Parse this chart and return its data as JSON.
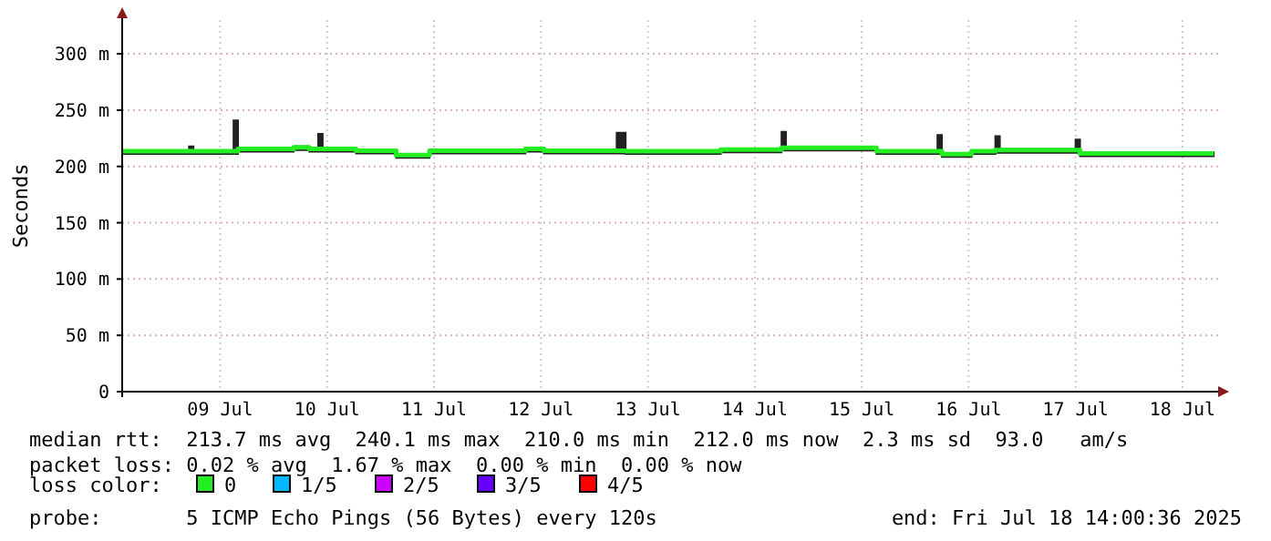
{
  "chart_data": {
    "type": "step",
    "ylabel": "Seconds",
    "legend_title": "loss color:",
    "legend": "bottom",
    "grid": true,
    "line_style": "solid",
    "marker": "none",
    "xlim": [
      "2025-07-08T14:00",
      "2025-07-18T20:00"
    ],
    "xticks": [
      {
        "value": "2025-07-09T12:00",
        "label": "09 Jul"
      },
      {
        "value": "2025-07-10T12:00",
        "label": "10 Jul"
      },
      {
        "value": "2025-07-11T12:00",
        "label": "11 Jul"
      },
      {
        "value": "2025-07-12T12:00",
        "label": "12 Jul"
      },
      {
        "value": "2025-07-13T12:00",
        "label": "13 Jul"
      },
      {
        "value": "2025-07-14T12:00",
        "label": "14 Jul"
      },
      {
        "value": "2025-07-15T12:00",
        "label": "15 Jul"
      },
      {
        "value": "2025-07-16T12:00",
        "label": "16 Jul"
      },
      {
        "value": "2025-07-17T12:00",
        "label": "17 Jul"
      },
      {
        "value": "2025-07-18T12:00",
        "label": "18 Jul"
      }
    ],
    "ylim": [
      0,
      330
    ],
    "yticks": [
      0,
      {
        "value": 50,
        "label": "50 m"
      },
      {
        "value": 100,
        "label": "100 m"
      },
      {
        "value": 150,
        "label": "150 m"
      },
      {
        "value": 200,
        "label": "200 m"
      },
      {
        "value": 250,
        "label": "250 m"
      },
      {
        "value": 300,
        "label": "300 m"
      }
    ],
    "x": [
      "2025-07-08T14:00",
      "2025-07-09T05:00",
      "2025-07-09T06:00",
      "2025-07-09T15:00",
      "2025-07-09T16:00",
      "2025-07-10T04:30",
      "2025-07-10T08:00",
      "2025-07-10T10:00",
      "2025-07-10T11:00",
      "2025-07-10T18:30",
      "2025-07-11T03:30",
      "2025-07-11T11:00",
      "2025-07-12T08:30",
      "2025-07-12T12:40",
      "2025-07-13T05:00",
      "2025-07-13T07:00",
      "2025-07-14T04:20",
      "2025-07-14T18:00",
      "2025-07-14T19:00",
      "2025-07-15T15:20",
      "2025-07-16T05:00",
      "2025-07-16T06:00",
      "2025-07-16T12:40",
      "2025-07-16T18:00",
      "2025-07-16T19:00",
      "2025-07-17T12:00",
      "2025-07-17T13:00",
      "2025-07-18T19:00"
    ],
    "series": [
      {
        "name": "0",
        "color": "#22ee22",
        "values": [
          213.5,
          213.5,
          213.5,
          213.5,
          215.5,
          217,
          215.5,
          215.5,
          215.5,
          214,
          210,
          214,
          215.5,
          214,
          214,
          213.5,
          215,
          216.5,
          216.5,
          213.5,
          213.5,
          211,
          213.5,
          214.5,
          214.5,
          214.5,
          211.5,
          211.5
        ],
        "lower": [
          213.5,
          213.5,
          213.5,
          213.5,
          215.5,
          217,
          215.5,
          215.5,
          215.5,
          214,
          210,
          214,
          215.5,
          214,
          214,
          213.5,
          215,
          216.5,
          216.5,
          213.5,
          213.5,
          211,
          213.5,
          214.5,
          214.5,
          214.5,
          211.5,
          211.5
        ],
        "upper": [
          213.5,
          217,
          213.5,
          240,
          215.5,
          217,
          215.5,
          228,
          215.5,
          214,
          210,
          214,
          215.5,
          214,
          229,
          213.5,
          215,
          230,
          216.5,
          213.5,
          227,
          211,
          213.5,
          226,
          214.5,
          223,
          211.5,
          211.5
        ]
      },
      {
        "name": "1/5",
        "color": "#00b8ff",
        "values": [
          null,
          null,
          null,
          null,
          null,
          null,
          null,
          null,
          null,
          null,
          null,
          null,
          null,
          null,
          null,
          null,
          null,
          null,
          null,
          null,
          null,
          null,
          null,
          null,
          null,
          null,
          null,
          null
        ]
      },
      {
        "name": "2/5",
        "color": "#cc00ff",
        "values": [
          null,
          null,
          null,
          null,
          null,
          null,
          null,
          null,
          null,
          null,
          null,
          null,
          null,
          null,
          null,
          null,
          null,
          null,
          null,
          null,
          null,
          null,
          null,
          null,
          null,
          null,
          null,
          null
        ]
      },
      {
        "name": "3/5",
        "color": "#6600ff",
        "values": [
          null,
          null,
          null,
          null,
          null,
          null,
          null,
          null,
          null,
          null,
          null,
          null,
          null,
          null,
          null,
          null,
          null,
          null,
          null,
          null,
          null,
          null,
          null,
          null,
          null,
          null,
          null,
          null
        ]
      },
      {
        "name": "4/5",
        "color": "#ff0000",
        "values": [
          null,
          null,
          null,
          null,
          null,
          null,
          null,
          null,
          null,
          null,
          null,
          null,
          null,
          null,
          null,
          null,
          null,
          null,
          null,
          null,
          null,
          null,
          null,
          null,
          null,
          null,
          null,
          null
        ]
      }
    ],
    "annotations": [
      "median rtt:  213.7 ms avg  240.1 ms max  210.0 ms min  212.0 ms now  2.3 ms sd  93.0   am/s",
      "packet loss: 0.02 % avg  1.67 % max  0.00 % min  0.00 % now",
      "probe:       5 ICMP Echo Pings (56 Bytes) every 120s",
      "end: Fri Jul 18 14:00:36 2025"
    ]
  }
}
